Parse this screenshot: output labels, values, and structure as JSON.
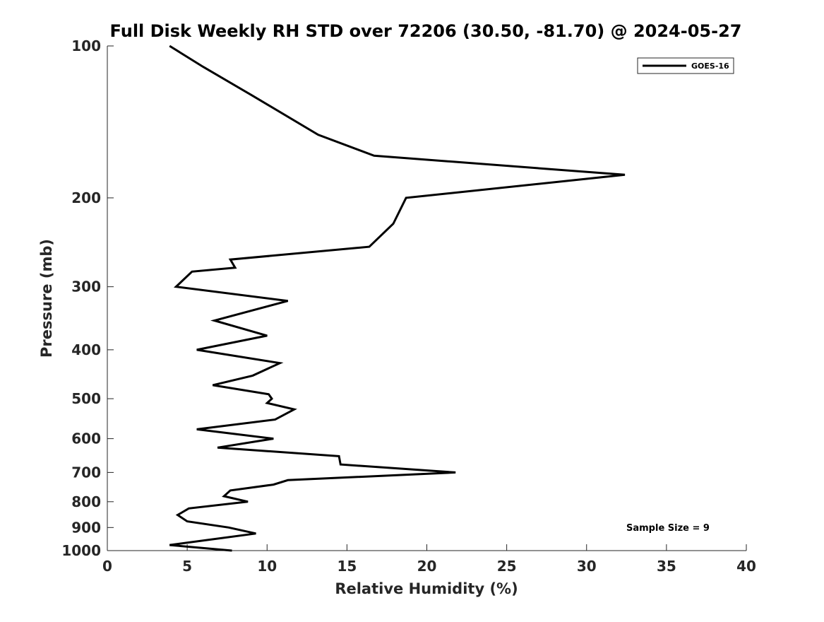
{
  "chart_data": {
    "type": "line",
    "title": "Full Disk Weekly RH STD over 72206 (30.50, -81.70) @ 2024-05-27",
    "xlabel": "Relative Humidity (%)",
    "ylabel": "Pressure (mb)",
    "xlim": [
      0,
      40
    ],
    "ylim": [
      1000,
      100
    ],
    "yscale": "log",
    "y_inverted": true,
    "grid": false,
    "legend_position": "top-right",
    "x_ticks": [
      0,
      5,
      10,
      15,
      20,
      25,
      30,
      35,
      40
    ],
    "y_ticks": [
      100,
      200,
      300,
      400,
      500,
      600,
      700,
      800,
      900,
      1000
    ],
    "annotation": "Sample Size = 9",
    "series": [
      {
        "name": "GOES-16",
        "color": "#000000",
        "x": [
          7.8,
          3.9,
          9.3,
          7.6,
          5.0,
          4.4,
          5.1,
          8.8,
          7.3,
          7.7,
          10.4,
          11.3,
          21.8,
          14.6,
          14.5,
          6.9,
          10.4,
          5.6,
          10.5,
          11.7,
          10.0,
          10.3,
          10.1,
          6.6,
          9.1,
          10.8,
          5.6,
          10.0,
          6.7,
          11.3,
          4.3,
          5.3,
          8.0,
          7.7,
          16.4,
          17.9,
          18.7,
          32.4,
          16.7,
          13.2,
          9.0,
          6.0,
          3.9
        ],
        "y": [
          1000,
          975,
          925,
          900,
          875,
          850,
          825,
          800,
          780,
          760,
          740,
          725,
          700,
          675,
          650,
          625,
          600,
          575,
          550,
          525,
          510,
          500,
          490,
          470,
          450,
          425,
          400,
          375,
          350,
          320,
          300,
          280,
          275,
          265,
          250,
          225,
          200,
          180,
          165,
          150,
          125,
          110,
          100
        ]
      }
    ]
  }
}
